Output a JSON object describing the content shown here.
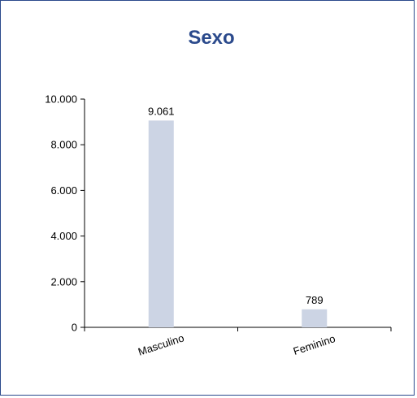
{
  "chart_data": {
    "type": "bar",
    "title": "Sexo",
    "categories": [
      "Masculino",
      "Feminino"
    ],
    "values": [
      9061,
      789
    ],
    "data_labels": [
      "9.061",
      "789"
    ],
    "ylim": [
      0,
      10000
    ],
    "yticks": [
      0,
      2000,
      4000,
      6000,
      8000,
      10000
    ],
    "ytick_labels": [
      "0",
      "2.000",
      "4.000",
      "6.000",
      "8.000",
      "10.000"
    ],
    "xlabel": "",
    "ylabel": "",
    "grid": false,
    "legend": "none",
    "colors": {
      "bar": "#ccd4e4",
      "title": "#2b4a8c",
      "border": "#2b4a8c",
      "axis": "#000000"
    }
  }
}
